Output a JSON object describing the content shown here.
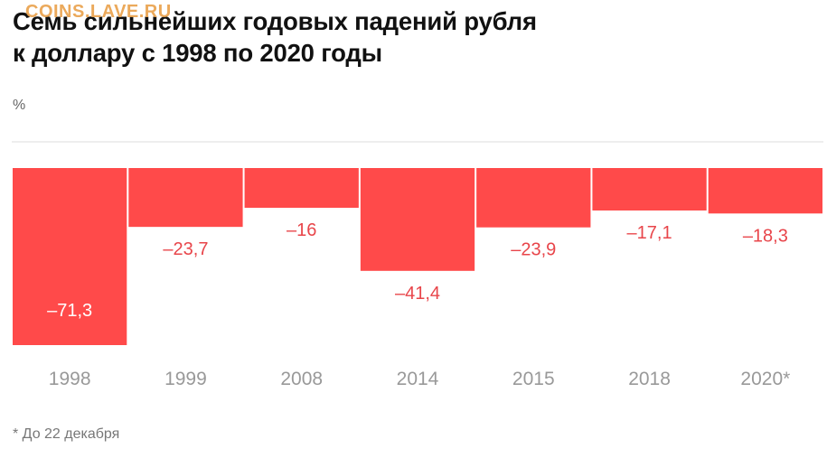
{
  "watermark": "COINS.LAVE.RU",
  "chart_data": {
    "type": "bar",
    "title_line1": "Семь сильнейших годовых падений рубля",
    "title_line2": "к доллару с 1998 по 2020 годы",
    "unit": "%",
    "categories": [
      "1998",
      "1999",
      "2008",
      "2014",
      "2015",
      "2018",
      "2020*"
    ],
    "values": [
      -71.3,
      -23.7,
      -16,
      -41.4,
      -23.9,
      -17.1,
      -18.3
    ],
    "value_labels": [
      "–71,3",
      "–23,7",
      "–16",
      "–41,4",
      "–23,9",
      "–17,1",
      "–18,3"
    ],
    "ylim": [
      -71.3,
      0
    ],
    "grid": false,
    "bar_color": "#ff4a4a",
    "label_color_outside": "#e8454a",
    "label_color_inside": "#ffffff",
    "footnote": "* До 22 декабря"
  }
}
